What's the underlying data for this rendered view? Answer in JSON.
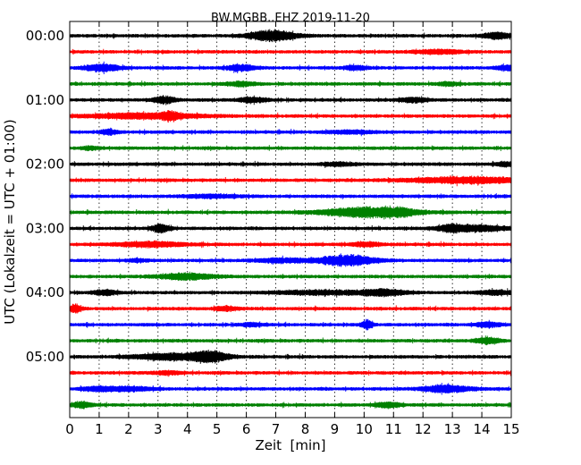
{
  "chart_data": {
    "type": "line",
    "subtype": "dayplot-seismogram",
    "title": "BW.MGBB..EHZ 2019-11-20",
    "xlabel": "Zeit  [min]",
    "ylabel": "UTC (Lokalzeit = UTC + 01:00)",
    "xlim": [
      0,
      15
    ],
    "x_ticks": [
      "0",
      "1",
      "2",
      "3",
      "4",
      "5",
      "6",
      "7",
      "8",
      "9",
      "10",
      "11",
      "12",
      "13",
      "14",
      "15"
    ],
    "y_tick_labels": [
      "00:00",
      "01:00",
      "02:00",
      "03:00",
      "04:00",
      "05:00"
    ],
    "grid": "vertical dotted lines at each minute",
    "trace_interval_minutes": 15,
    "color_cycle": [
      "#000000",
      "#ff0000",
      "#0000ff",
      "#008000"
    ],
    "series": [
      {
        "start": "00:00",
        "bursts": [
          [
            6.9,
            0.8,
            1.0
          ],
          [
            14.5,
            0.5,
            0.6
          ]
        ]
      },
      {
        "start": "00:15",
        "bursts": [
          [
            12.5,
            0.8,
            0.4
          ]
        ]
      },
      {
        "start": "00:30",
        "bursts": [
          [
            1.1,
            0.6,
            0.7
          ],
          [
            5.8,
            0.5,
            0.6
          ],
          [
            9.7,
            0.4,
            0.4
          ],
          [
            14.9,
            0.4,
            0.5
          ]
        ]
      },
      {
        "start": "00:45",
        "bursts": [
          [
            5.8,
            0.5,
            0.4
          ],
          [
            12.9,
            0.4,
            0.3
          ]
        ]
      },
      {
        "start": "01:00",
        "bursts": [
          [
            3.2,
            0.4,
            0.7
          ],
          [
            6.2,
            0.5,
            0.5
          ],
          [
            11.7,
            0.5,
            0.4
          ]
        ]
      },
      {
        "start": "01:15",
        "bursts": [
          [
            2.5,
            2.0,
            0.5
          ],
          [
            3.4,
            0.3,
            0.6
          ]
        ]
      },
      {
        "start": "01:30",
        "bursts": [
          [
            1.3,
            0.3,
            0.5
          ],
          [
            9.5,
            0.8,
            0.3
          ]
        ]
      },
      {
        "start": "01:45",
        "bursts": [
          [
            0.7,
            0.3,
            0.3
          ]
        ]
      },
      {
        "start": "02:00",
        "bursts": [
          [
            14.8,
            0.3,
            0.4
          ],
          [
            9.1,
            0.6,
            0.3
          ]
        ]
      },
      {
        "start": "02:15",
        "bursts": [
          [
            13.5,
            2.0,
            0.6
          ]
        ]
      },
      {
        "start": "02:30",
        "bursts": [
          [
            4.8,
            1.0,
            0.3
          ]
        ]
      },
      {
        "start": "02:45",
        "bursts": [
          [
            10.2,
            1.6,
            1.0
          ],
          [
            11.3,
            0.4,
            0.3
          ]
        ]
      },
      {
        "start": "03:00",
        "bursts": [
          [
            3.1,
            0.3,
            0.8
          ],
          [
            13.8,
            1.0,
            0.6
          ],
          [
            12.9,
            0.4,
            0.5
          ]
        ]
      },
      {
        "start": "03:15",
        "bursts": [
          [
            2.8,
            1.2,
            0.5
          ],
          [
            10.1,
            0.5,
            0.4
          ]
        ]
      },
      {
        "start": "03:30",
        "bursts": [
          [
            9.4,
            1.0,
            1.0
          ],
          [
            7.2,
            0.8,
            0.4
          ],
          [
            2.3,
            0.3,
            0.3
          ]
        ]
      },
      {
        "start": "03:45",
        "bursts": [
          [
            4.0,
            1.0,
            0.6
          ]
        ]
      },
      {
        "start": "04:00",
        "bursts": [
          [
            10.6,
            0.8,
            0.6
          ],
          [
            8.5,
            1.5,
            0.4
          ],
          [
            1.2,
            0.4,
            0.5
          ],
          [
            14.5,
            0.6,
            0.4
          ]
        ]
      },
      {
        "start": "04:15",
        "bursts": [
          [
            0.2,
            0.2,
            0.8
          ],
          [
            5.3,
            0.4,
            0.4
          ]
        ]
      },
      {
        "start": "04:30",
        "bursts": [
          [
            10.1,
            0.2,
            0.8
          ],
          [
            14.2,
            0.4,
            0.5
          ],
          [
            6.2,
            0.4,
            0.3
          ]
        ]
      },
      {
        "start": "04:45",
        "bursts": [
          [
            14.2,
            0.4,
            0.6
          ]
        ]
      },
      {
        "start": "05:00",
        "bursts": [
          [
            3.5,
            1.4,
            0.6
          ],
          [
            4.8,
            0.6,
            0.9
          ]
        ]
      },
      {
        "start": "05:15",
        "bursts": [
          [
            3.3,
            0.5,
            0.3
          ]
        ]
      },
      {
        "start": "05:30",
        "bursts": [
          [
            12.8,
            0.8,
            0.7
          ],
          [
            2.0,
            0.8,
            0.4
          ],
          [
            0.9,
            0.5,
            0.4
          ]
        ]
      },
      {
        "start": "05:45",
        "bursts": [
          [
            0.4,
            0.4,
            0.5
          ],
          [
            10.8,
            0.4,
            0.5
          ]
        ]
      }
    ]
  }
}
